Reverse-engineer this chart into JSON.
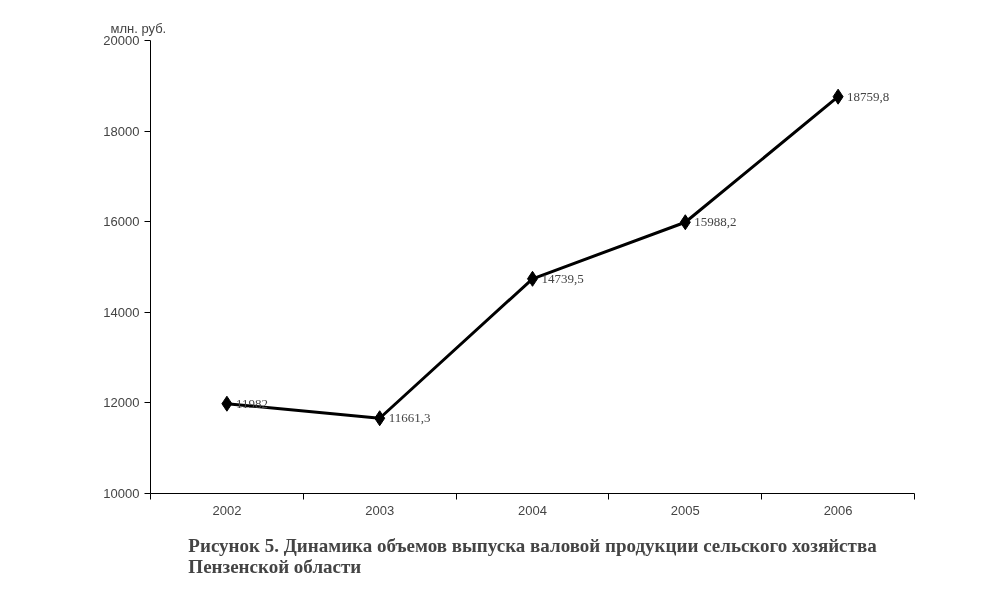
{
  "chart_data": {
    "type": "line",
    "title": "Рисунок 5. Динамика объемов выпуска валовой продукции сельского хозяйства\nПензенской области",
    "ylabel": "млн. руб.",
    "categories": [
      "2002",
      "2003",
      "2004",
      "2005",
      "2006"
    ],
    "series": [
      {
        "color": "#000000",
        "values": [
          11982,
          11661.3,
          14739.5,
          15988.2,
          18759.8
        ],
        "value_labels": [
          "11982",
          "11661,3",
          "14739,5",
          "15988,2",
          "18759,8"
        ]
      }
    ],
    "ylim": [
      10000,
      20000
    ],
    "yticks": [
      10000,
      12000,
      14000,
      16000,
      18000,
      20000
    ],
    "grid": false,
    "marker": "diamond",
    "line_style": "solid"
  }
}
